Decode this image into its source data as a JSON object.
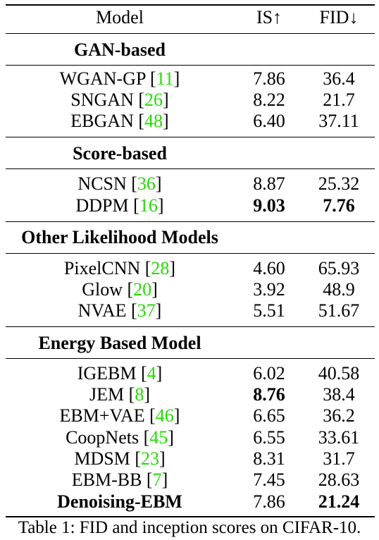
{
  "header": {
    "model": "Model",
    "is": "IS↑",
    "fid": "FID↓"
  },
  "sections": [
    {
      "title": "GAN-based",
      "rows": [
        {
          "name": "WGAN-GP",
          "ref": "11",
          "is": "7.86",
          "fid": "36.4"
        },
        {
          "name": "SNGAN",
          "ref": "26",
          "is": "8.22",
          "fid": "21.7"
        },
        {
          "name": "EBGAN",
          "ref": "48",
          "is": "6.40",
          "fid": "37.11"
        }
      ]
    },
    {
      "title": "Score-based",
      "rows": [
        {
          "name": "NCSN",
          "ref": "36",
          "is": "8.87",
          "fid": "25.32"
        },
        {
          "name": "DDPM",
          "ref": "16",
          "is": "9.03",
          "fid": "7.76"
        }
      ]
    },
    {
      "title": "Other Likelihood Models",
      "rows": [
        {
          "name": "PixelCNN",
          "ref": "28",
          "is": "4.60",
          "fid": "65.93"
        },
        {
          "name": "Glow",
          "ref": "20",
          "is": "3.92",
          "fid": "48.9"
        },
        {
          "name": "NVAE",
          "ref": "37",
          "is": "5.51",
          "fid": "51.67"
        }
      ]
    },
    {
      "title": "Energy Based Model",
      "rows": [
        {
          "name": "IGEBM",
          "ref": "4",
          "is": "6.02",
          "fid": "40.58"
        },
        {
          "name": "JEM",
          "ref": "8",
          "is": "8.76",
          "fid": "38.4"
        },
        {
          "name": "EBM+VAE",
          "ref": "46",
          "is": "6.65",
          "fid": "36.2"
        },
        {
          "name": "CoopNets",
          "ref": "45",
          "is": "6.55",
          "fid": "33.61"
        },
        {
          "name": "MDSM",
          "ref": "23",
          "is": "8.31",
          "fid": "31.7"
        },
        {
          "name": "EBM-BB",
          "ref": "7",
          "is": "7.45",
          "fid": "28.63"
        },
        {
          "name": "Denoising-EBM",
          "ref": "",
          "is": "7.86",
          "fid": "21.24"
        }
      ]
    }
  ],
  "caption": "Table 1: FID and inception scores on CIFAR-10."
}
